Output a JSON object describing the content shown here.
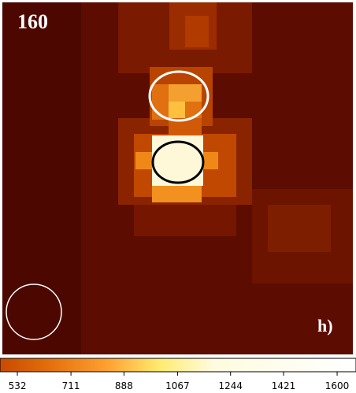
{
  "image": {
    "label": "160",
    "panel": "h)"
  },
  "colorbar": {
    "lim": [
      474,
      1663
    ],
    "ticks": [
      532,
      711,
      888,
      1067,
      1244,
      1421,
      1600
    ]
  }
}
